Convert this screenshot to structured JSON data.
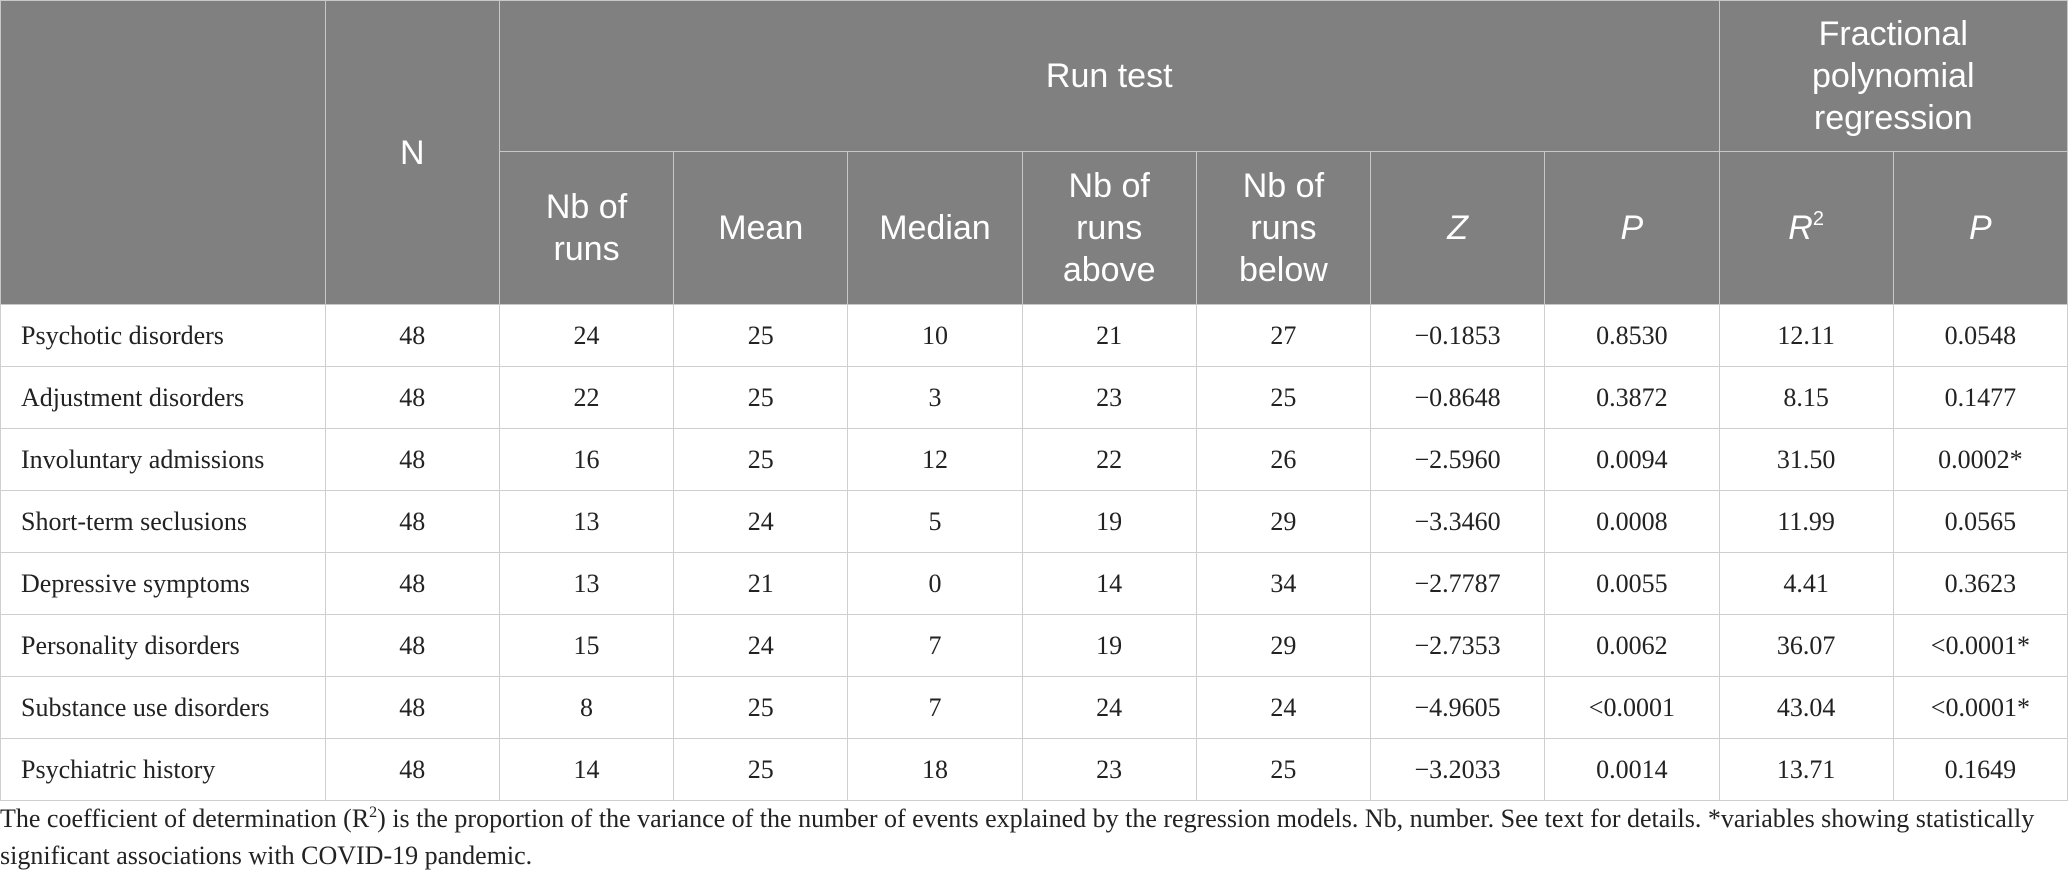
{
  "table": {
    "header": {
      "n": "N",
      "run_test": "Run test",
      "fp_line1": "Fractional",
      "fp_line2": "polynomial",
      "fp_line3": "regression",
      "nb_runs_l1": "Nb of",
      "nb_runs_l2": "runs",
      "mean": "Mean",
      "median": "Median",
      "above_l1": "Nb of",
      "above_l2": "runs",
      "above_l3": "above",
      "below_l1": "Nb of",
      "below_l2": "runs",
      "below_l3": "below",
      "z": "Z",
      "p": "P",
      "r2_base": "R",
      "r2_sup": "2",
      "fp_p": "P"
    },
    "rows": [
      {
        "label": "Psychotic disorders",
        "n": "48",
        "runs": "24",
        "mean": "25",
        "median": "10",
        "above": "21",
        "below": "27",
        "z": "−0.1853",
        "p": "0.8530",
        "r2": "12.11",
        "fp_p": "0.0548"
      },
      {
        "label": "Adjustment disorders",
        "n": "48",
        "runs": "22",
        "mean": "25",
        "median": "3",
        "above": "23",
        "below": "25",
        "z": "−0.8648",
        "p": "0.3872",
        "r2": "8.15",
        "fp_p": "0.1477"
      },
      {
        "label": "Involuntary admissions",
        "n": "48",
        "runs": "16",
        "mean": "25",
        "median": "12",
        "above": "22",
        "below": "26",
        "z": "−2.5960",
        "p": "0.0094",
        "r2": "31.50",
        "fp_p": "0.0002*"
      },
      {
        "label": "Short-term seclusions",
        "n": "48",
        "runs": "13",
        "mean": "24",
        "median": "5",
        "above": "19",
        "below": "29",
        "z": "−3.3460",
        "p": "0.0008",
        "r2": "11.99",
        "fp_p": "0.0565"
      },
      {
        "label": "Depressive symptoms",
        "n": "48",
        "runs": "13",
        "mean": "21",
        "median": "0",
        "above": "14",
        "below": "34",
        "z": "−2.7787",
        "p": "0.0055",
        "r2": "4.41",
        "fp_p": "0.3623"
      },
      {
        "label": "Personality disorders",
        "n": "48",
        "runs": "15",
        "mean": "24",
        "median": "7",
        "above": "19",
        "below": "29",
        "z": "−2.7353",
        "p": "0.0062",
        "r2": "36.07",
        "fp_p": "<0.0001*"
      },
      {
        "label": "Substance use disorders",
        "n": "48",
        "runs": "8",
        "mean": "25",
        "median": "7",
        "above": "24",
        "below": "24",
        "z": "−4.9605",
        "p": "<0.0001",
        "r2": "43.04",
        "fp_p": "<0.0001*"
      },
      {
        "label": "Psychiatric history",
        "n": "48",
        "runs": "14",
        "mean": "25",
        "median": "18",
        "above": "23",
        "below": "25",
        "z": "−3.2033",
        "p": "0.0014",
        "r2": "13.71",
        "fp_p": "0.1649"
      }
    ]
  },
  "footnote": {
    "part1": "The coefficient of determination (R",
    "sup": "2",
    "part2": ") is the proportion of the variance of the number of events explained by the regression models. Nb, number. See text for details. *variables showing statistically significant associations with COVID-19 pandemic."
  }
}
